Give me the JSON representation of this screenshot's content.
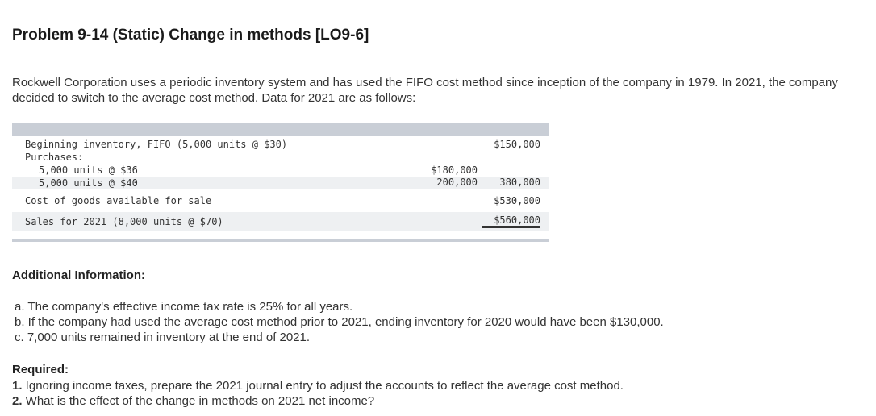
{
  "problem": {
    "title": "Problem 9-14 (Static) Change in methods [LO9-6]",
    "intro": "Rockwell Corporation uses a periodic inventory system and has used the FIFO cost method since inception of the company in 1979. In 2021, the company decided to switch to the average cost method. Data for 2021 are as follows:"
  },
  "table": {
    "rows": [
      {
        "label": "Beginning inventory, FIFO (5,000 units @ $30)",
        "col1": "",
        "col2": "$150,000"
      },
      {
        "label": "Purchases:",
        "col1": "",
        "col2": ""
      },
      {
        "label": "5,000 units @ $36",
        "col1": "$180,000",
        "col2": ""
      },
      {
        "label": "5,000 units @ $40",
        "col1": "200,000",
        "col2": "380,000"
      },
      {
        "label": "Cost of goods available for sale",
        "col1": "",
        "col2": "$530,000"
      },
      {
        "label": "Sales for 2021 (8,000 units @ $70)",
        "col1": "",
        "col2": "$560,000"
      }
    ]
  },
  "additional": {
    "heading": "Additional Information:",
    "items": [
      "a. The company's effective income tax rate is 25% for all years.",
      "b. If the company had used the average cost method prior to 2021, ending inventory for 2020 would have been $130,000.",
      "c. 7,000 units remained in inventory at the end of 2021."
    ]
  },
  "required": {
    "heading": "Required:",
    "items": [
      {
        "num": "1.",
        "text": " Ignoring income taxes, prepare the 2021 journal entry to adjust the accounts to reflect the average cost method."
      },
      {
        "num": "2.",
        "text": " What is the effect of the change in methods on 2021 net income?"
      }
    ]
  }
}
